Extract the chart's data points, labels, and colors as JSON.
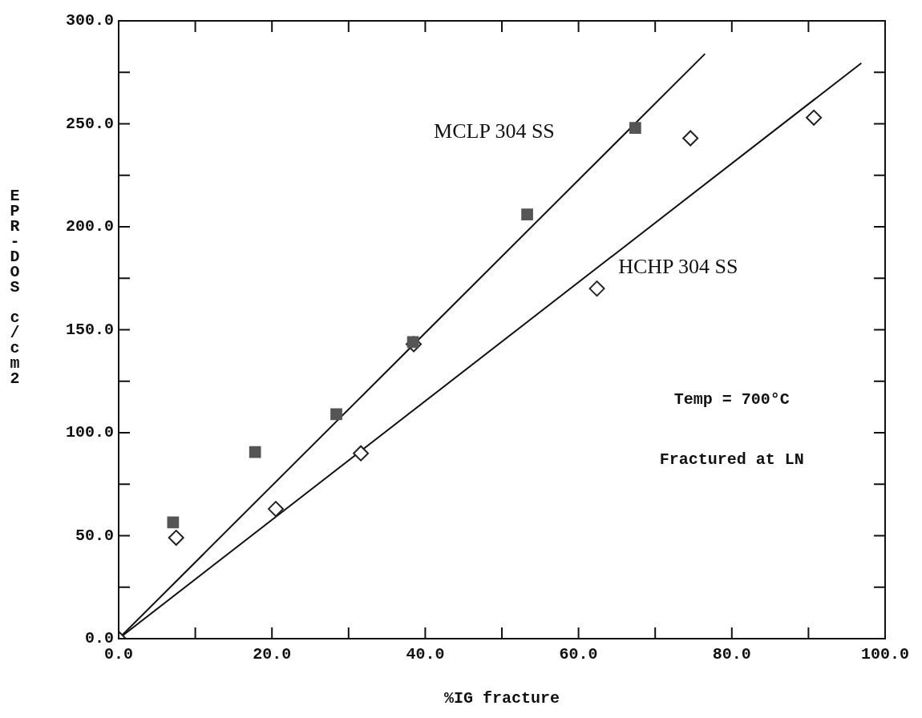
{
  "chart_data": {
    "type": "scatter",
    "xlabel": "%IG fracture",
    "ylabel": "EPR-DOS c/cm2",
    "xlim": [
      0,
      100
    ],
    "ylim": [
      0,
      300
    ],
    "xticks": [
      {
        "value": 0,
        "label": "0.0"
      },
      {
        "value": 10,
        "label": null
      },
      {
        "value": 20,
        "label": "20.0"
      },
      {
        "value": 30,
        "label": null
      },
      {
        "value": 40,
        "label": "40.0"
      },
      {
        "value": 50,
        "label": null
      },
      {
        "value": 60,
        "label": "60.0"
      },
      {
        "value": 70,
        "label": null
      },
      {
        "value": 80,
        "label": "80.0"
      },
      {
        "value": 90,
        "label": null
      },
      {
        "value": 100,
        "label": "100.0"
      }
    ],
    "yticks": [
      {
        "value": 0,
        "label": "0.0"
      },
      {
        "value": 25,
        "label": null
      },
      {
        "value": 50,
        "label": "50.0"
      },
      {
        "value": 75,
        "label": null
      },
      {
        "value": 100,
        "label": "100.0"
      },
      {
        "value": 125,
        "label": null
      },
      {
        "value": 150,
        "label": "150.0"
      },
      {
        "value": 175,
        "label": null
      },
      {
        "value": 200,
        "label": "200.0"
      },
      {
        "value": 225,
        "label": null
      },
      {
        "value": 250,
        "label": "250.0"
      },
      {
        "value": 275,
        "label": null
      },
      {
        "value": 300,
        "label": "300.0"
      }
    ],
    "legend": false,
    "series": [
      {
        "marker": "square",
        "color": "#555555",
        "x": [
          7.1,
          17.8,
          28.4,
          38.4,
          53.3,
          67.4
        ],
        "values": [
          56.5,
          90.6,
          109,
          144,
          206,
          248
        ]
      },
      {
        "marker": "diamond",
        "color": "#222222",
        "x": [
          0,
          7.5,
          20.5,
          31.6,
          38.5,
          62.4,
          74.6,
          90.7
        ],
        "values": [
          0,
          49,
          63,
          90,
          143,
          170,
          243,
          253
        ]
      },
      {
        "type": "line",
        "marker": "none",
        "color": "#111111",
        "x": [
          0,
          76.5
        ],
        "values": [
          0,
          284
        ]
      },
      {
        "type": "line",
        "marker": "none",
        "color": "#111111",
        "x": [
          0,
          96.9
        ],
        "values": [
          0,
          279.5
        ]
      }
    ],
    "annotations": [
      "MCLP 304 SS",
      "HCHP 304 SS",
      "Temp = 700°C",
      "Fractured at LN"
    ]
  }
}
